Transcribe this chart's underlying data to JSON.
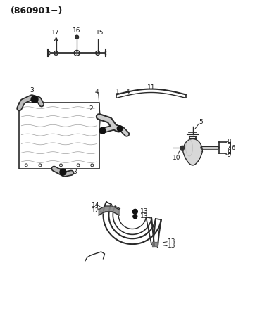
{
  "title": "(860901−)",
  "bg": "#ffffff",
  "lc": "#2a2a2a",
  "tc": "#1a1a1a",
  "fig_w": 3.62,
  "fig_h": 4.55,
  "dpi": 100
}
